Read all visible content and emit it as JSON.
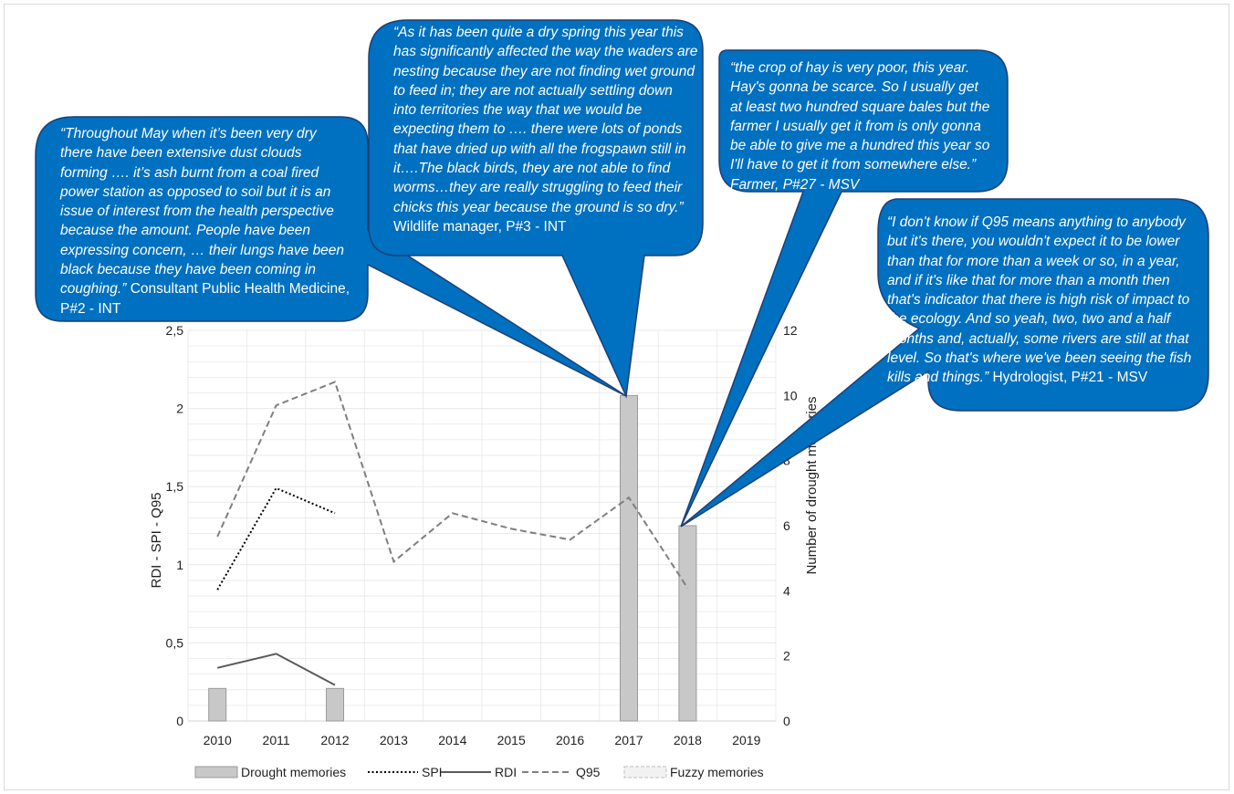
{
  "chart_data": {
    "type": "bar",
    "x": [
      "2010",
      "2011",
      "2012",
      "2013",
      "2014",
      "2015",
      "2016",
      "2017",
      "2018",
      "2019"
    ],
    "ylabel": "RDI - SPI - Q95",
    "y2label": "Number of drought memories",
    "ylim": [
      0,
      2.5
    ],
    "y2lim": [
      0,
      12
    ],
    "yticks": [
      "0",
      "0,5",
      "1",
      "1,5",
      "2",
      "2,5"
    ],
    "y2ticks": [
      "0",
      "2",
      "4",
      "6",
      "8",
      "10",
      "12"
    ],
    "grid": true,
    "legend_position": "bottom",
    "series": [
      {
        "name": "Drought memories",
        "kind": "bar",
        "axis": "right",
        "values": [
          1,
          null,
          1,
          null,
          null,
          null,
          null,
          10,
          6,
          null
        ]
      },
      {
        "name": "SPI",
        "kind": "line",
        "style": "dotted",
        "axis": "left",
        "values": [
          0.84,
          1.49,
          1.33,
          null,
          null,
          null,
          null,
          null,
          null,
          null
        ]
      },
      {
        "name": "RDI",
        "kind": "line",
        "style": "solid",
        "axis": "left",
        "values": [
          0.34,
          0.43,
          0.23,
          null,
          null,
          null,
          null,
          null,
          null,
          null
        ]
      },
      {
        "name": "Q95",
        "kind": "line",
        "style": "dashed",
        "axis": "left",
        "values": [
          1.18,
          2.02,
          2.17,
          1.02,
          1.33,
          1.23,
          1.16,
          1.43,
          0.85,
          null
        ]
      },
      {
        "name": "Fuzzy memories",
        "kind": "bar",
        "style": "dashed-outline",
        "axis": "right",
        "values": [
          null,
          null,
          null,
          null,
          null,
          null,
          null,
          null,
          null,
          null
        ]
      }
    ],
    "colors": {
      "bar_fill": "#c8c8c8",
      "bar_edge": "#9a9a9a",
      "line": "#595959",
      "q95": "#7f7f7f",
      "grid": "#e7e7e7",
      "axis_text": "#1f1f1f"
    }
  },
  "callouts": [
    {
      "id": "health",
      "quote": "“Throughout May when it’s been very dry there have been extensive dust clouds forming …. it’s ash burnt from a coal fired power station as opposed to soil but it is an issue of interest from the health perspective because the amount. People have been expressing concern, … their lungs have been black because they have been coming in coughing.”",
      "attribution": "  Consultant Public Health Medicine, P#2 - INT"
    },
    {
      "id": "wildlife",
      "quote": "“As it has been quite a dry spring this year this has significantly affected the way the waders are nesting because they are not finding wet ground to feed in; they are not actually settling down into territories the way that we would be expecting them to …. there were lots of ponds that have dried up with all the frogspawn still in it….The black birds, they are not able to find worms…they are really struggling to feed their chicks this year because the ground is so dry.”",
      "attribution": " Wildlife manager, P#3 - INT"
    },
    {
      "id": "farmer",
      "quote": "“the crop of hay is very poor, this year. Hay's gonna be scarce. So I usually get at least two hundred square bales but the farmer I usually get it from is only gonna be able to give me a hundred this year so I'll have to get it from somewhere else.” Farmer, P#27 - MSV",
      "attribution": ""
    },
    {
      "id": "hydrologist",
      "quote": "“I don't know if Q95 means anything to anybody but it's there, you wouldn't expect it to be lower than that for more than a week or so, in a year, and if it's like that for more than a month then that's indicator that there is high risk of impact to the ecology. And so yeah, two, two and a half months and, actually, some rivers are still at that level. So that's where we've been seeing the fish kills and things.”",
      "attribution": " Hydrologist, P#21 - MSV"
    }
  ]
}
